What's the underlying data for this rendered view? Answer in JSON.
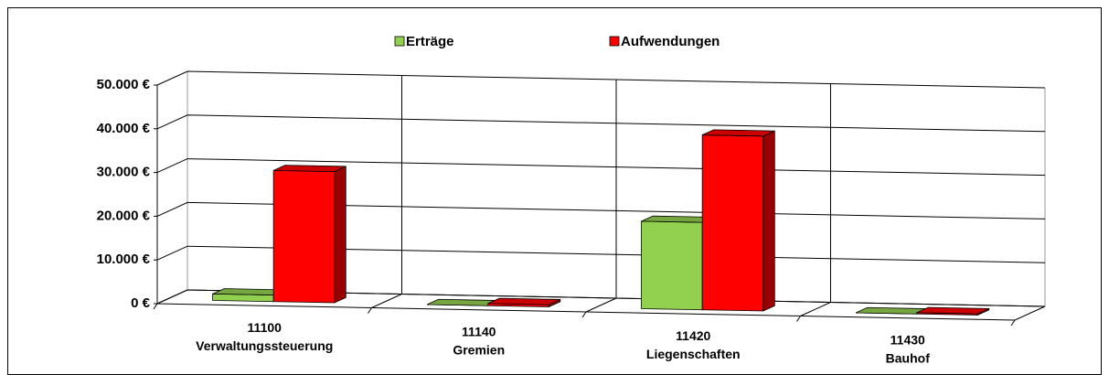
{
  "chart_data": {
    "type": "bar3d",
    "categories": [
      [
        "11100",
        "Verwaltungssteuerung"
      ],
      [
        "11140",
        "Gremien"
      ],
      [
        "11420",
        "Liegenschaften"
      ],
      [
        "11430",
        "Bauhof"
      ]
    ],
    "series": [
      {
        "name": "Erträge",
        "color": "#92d050",
        "values": [
          1500,
          0,
          20000,
          0
        ]
      },
      {
        "name": "Aufwendungen",
        "color": "#ff0000",
        "values": [
          30000,
          500,
          40000,
          300
        ]
      }
    ],
    "ylim": [
      0,
      50000
    ],
    "yticks": [
      {
        "value": 0,
        "label": "0 €"
      },
      {
        "value": 10000,
        "label": "10.000 €"
      },
      {
        "value": 20000,
        "label": "20.000 €"
      },
      {
        "value": 30000,
        "label": "30.000 €"
      },
      {
        "value": 40000,
        "label": "40.000 €"
      },
      {
        "value": 50000,
        "label": "50.000 €"
      }
    ],
    "grid": true,
    "legend": "top"
  }
}
